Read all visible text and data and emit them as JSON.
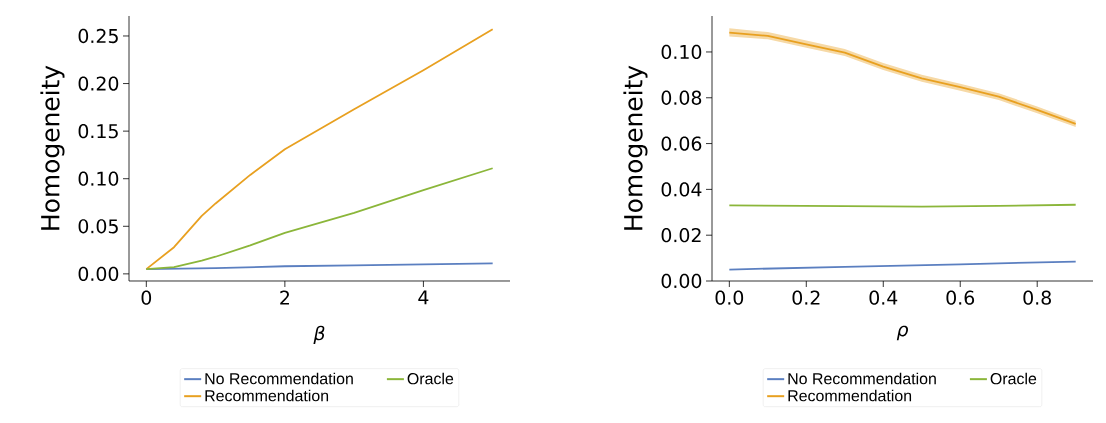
{
  "chart_data": [
    {
      "type": "line",
      "xlabel": "β",
      "ylabel": "Homogeneity",
      "xlim": [
        -0.25,
        5.25
      ],
      "ylim": [
        -0.0075,
        0.271
      ],
      "xticks": [
        0,
        2,
        4
      ],
      "yticks": [
        {
          "value": 0,
          "label": "0.00"
        },
        {
          "value": 0.05,
          "label": "0.05"
        },
        {
          "value": 0.1,
          "label": "0.10"
        },
        {
          "value": 0.15,
          "label": "0.15"
        },
        {
          "value": 0.2,
          "label": "0.20"
        },
        {
          "value": 0.25,
          "label": "0.25"
        }
      ],
      "legend": "bottom",
      "line_style": "solid",
      "series": [
        {
          "name": "No Recommendation",
          "color": "#5b7fc0",
          "x": [
            0,
            1,
            2,
            3,
            4,
            5
          ],
          "values": [
            0.005,
            0.006,
            0.008,
            0.009,
            0.01,
            0.011
          ]
        },
        {
          "name": "Recommendation",
          "color": "#e8a020",
          "x": [
            0,
            0.4,
            0.8,
            1.0,
            1.5,
            2,
            3,
            4,
            5
          ],
          "values": [
            0.005,
            0.028,
            0.061,
            0.074,
            0.104,
            0.131,
            0.173,
            0.214,
            0.257
          ]
        },
        {
          "name": "Oracle",
          "color": "#8bb63a",
          "x": [
            0,
            0.4,
            0.8,
            1.0,
            1.5,
            2,
            3,
            4,
            5
          ],
          "values": [
            0.005,
            0.007,
            0.014,
            0.018,
            0.03,
            0.043,
            0.064,
            0.088,
            0.111
          ]
        }
      ]
    },
    {
      "type": "line",
      "xlabel": "ρ",
      "ylabel": "Homogeneity",
      "xlim": [
        -0.045,
        0.945
      ],
      "ylim": [
        0,
        0.1157
      ],
      "xticks": [
        {
          "value": 0,
          "label": "0.0"
        },
        {
          "value": 0.2,
          "label": "0.2"
        },
        {
          "value": 0.4,
          "label": "0.4"
        },
        {
          "value": 0.6,
          "label": "0.6"
        },
        {
          "value": 0.8,
          "label": "0.8"
        }
      ],
      "yticks": [
        {
          "value": 0,
          "label": "0.00"
        },
        {
          "value": 0.02,
          "label": "0.02"
        },
        {
          "value": 0.04,
          "label": "0.04"
        },
        {
          "value": 0.06,
          "label": "0.06"
        },
        {
          "value": 0.08,
          "label": "0.08"
        },
        {
          "value": 0.1,
          "label": "0.10"
        }
      ],
      "legend": "bottom",
      "line_style": "solid",
      "series": [
        {
          "name": "No Recommendation",
          "color": "#5b7fc0",
          "x": [
            0,
            0.3,
            0.6,
            0.9
          ],
          "values": [
            0.005,
            0.0062,
            0.0073,
            0.0085
          ]
        },
        {
          "name": "Recommendation",
          "color": "#e8a020",
          "x": [
            0,
            0.1,
            0.2,
            0.3,
            0.4,
            0.5,
            0.6,
            0.7,
            0.8,
            0.9
          ],
          "values": [
            0.1084,
            0.107,
            0.1033,
            0.0997,
            0.0936,
            0.0885,
            0.0846,
            0.0805,
            0.0747,
            0.0686
          ],
          "lower": [
            0.1067,
            0.1055,
            0.1018,
            0.0982,
            0.0921,
            0.087,
            0.0831,
            0.079,
            0.0732,
            0.0672
          ],
          "upper": [
            0.1103,
            0.1087,
            0.105,
            0.1013,
            0.0952,
            0.09,
            0.0861,
            0.082,
            0.0762,
            0.07
          ]
        },
        {
          "name": "Oracle",
          "color": "#8bb63a",
          "x": [
            0,
            0.3,
            0.5,
            0.7,
            0.9
          ],
          "values": [
            0.033,
            0.0327,
            0.0325,
            0.0328,
            0.0333
          ]
        }
      ]
    }
  ]
}
